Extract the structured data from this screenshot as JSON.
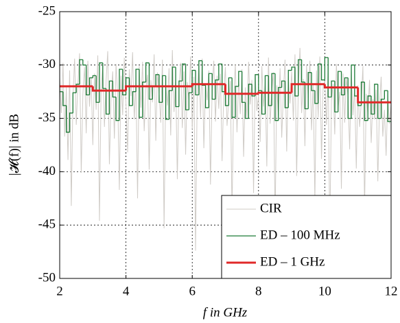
{
  "chart_data": {
    "type": "line",
    "xlabel": "f in GHz",
    "ylabel": "|𝓗(f)| in dB",
    "xlim": [
      2,
      12
    ],
    "ylim": [
      -50,
      -25
    ],
    "xticks": [
      2,
      4,
      6,
      8,
      10,
      12
    ],
    "yticks": [
      -50,
      -45,
      -40,
      -35,
      -30,
      -25
    ],
    "grid": true,
    "legend": "lower right",
    "series": [
      {
        "name": "CIR",
        "color": "#cfcbc6",
        "drawstyle": "default",
        "x": [
          2,
          2.05,
          2.1,
          2.15,
          2.2,
          2.25,
          2.3,
          2.35,
          2.4,
          2.45,
          2.5,
          2.55,
          2.6,
          2.65,
          2.7,
          2.75,
          2.8,
          2.85,
          2.9,
          2.95,
          3,
          3.05,
          3.1,
          3.15,
          3.2,
          3.25,
          3.3,
          3.35,
          3.4,
          3.45,
          3.5,
          3.55,
          3.6,
          3.65,
          3.7,
          3.75,
          3.8,
          3.85,
          3.9,
          3.95,
          4,
          4.05,
          4.1,
          4.15,
          4.2,
          4.25,
          4.3,
          4.35,
          4.4,
          4.45,
          4.5,
          4.55,
          4.6,
          4.65,
          4.7,
          4.75,
          4.8,
          4.85,
          4.9,
          4.95,
          5,
          5.05,
          5.1,
          5.15,
          5.2,
          5.25,
          5.3,
          5.35,
          5.4,
          5.45,
          5.5,
          5.55,
          5.6,
          5.65,
          5.7,
          5.75,
          5.8,
          5.85,
          5.9,
          5.95,
          6,
          6.05,
          6.1,
          6.15,
          6.2,
          6.25,
          6.3,
          6.35,
          6.4,
          6.45,
          6.5,
          6.55,
          6.6,
          6.65,
          6.7,
          6.75,
          6.8,
          6.85,
          6.9,
          6.95,
          7,
          7.05,
          7.1,
          7.15,
          7.2,
          7.25,
          7.3,
          7.35,
          7.4,
          7.45,
          7.5,
          7.55,
          7.6,
          7.65,
          7.7,
          7.75,
          7.8,
          7.85,
          7.9,
          7.95,
          8,
          8.05,
          8.1,
          8.15,
          8.2,
          8.25,
          8.3,
          8.35,
          8.4,
          8.45,
          8.5,
          8.55,
          8.6,
          8.65,
          8.7,
          8.75,
          8.8,
          8.85,
          8.9,
          8.95,
          9,
          9.05,
          9.1,
          9.15,
          9.2,
          9.25,
          9.3,
          9.35,
          9.4,
          9.45,
          9.5,
          9.55,
          9.6,
          9.65,
          9.7,
          9.75,
          9.8,
          9.85,
          9.9,
          9.95,
          10,
          10.05,
          10.1,
          10.15,
          10.2,
          10.25,
          10.3,
          10.35,
          10.4,
          10.45,
          10.5,
          10.55,
          10.6,
          10.65,
          10.7,
          10.75,
          10.8,
          10.85,
          10.9,
          10.95,
          11,
          11.05,
          11.1,
          11.15,
          11.2,
          11.25,
          11.3,
          11.35,
          11.4,
          11.45,
          11.5,
          11.55,
          11.6,
          11.65,
          11.7,
          11.75,
          11.8,
          11.85,
          11.9,
          11.95,
          12
        ],
        "values": [
          -31.2,
          -34.5,
          -29.8,
          -36.7,
          -32.1,
          -38.9,
          -30.5,
          -43.2,
          -33.0,
          -29.4,
          -35.6,
          -31.8,
          -28.9,
          -40.1,
          -32.7,
          -30.2,
          -36.4,
          -29.6,
          -33.9,
          -31.1,
          -37.5,
          -30.8,
          -34.2,
          -29.1,
          -44.6,
          -32.4,
          -30.0,
          -35.8,
          -31.5,
          -28.7,
          -39.3,
          -33.1,
          -30.6,
          -36.9,
          -29.9,
          -32.8,
          -41.7,
          -31.0,
          -34.7,
          -29.3,
          -33.6,
          -38.2,
          -30.4,
          -32.9,
          -28.8,
          -35.1,
          -31.7,
          -42.5,
          -30.1,
          -34.0,
          -29.7,
          -36.2,
          -32.3,
          -30.9,
          -39.8,
          -31.4,
          -33.5,
          -29.0,
          -37.1,
          -30.7,
          -32.6,
          -35.4,
          -29.5,
          -45.3,
          -31.9,
          -33.8,
          -30.3,
          -36.6,
          -28.6,
          -34.4,
          -31.3,
          -40.7,
          -32.0,
          -29.8,
          -35.9,
          -30.6,
          -38.4,
          -31.6,
          -33.2,
          -29.2,
          -36.0,
          -31.1,
          -47.4,
          -32.5,
          -30.0,
          -34.9,
          -29.4,
          -37.8,
          -31.8,
          -33.3,
          -30.5,
          -41.2,
          -32.2,
          -29.6,
          -35.3,
          -31.0,
          -34.1,
          -30.8,
          -39.0,
          -32.7,
          -30.2,
          -35.7,
          -33.4,
          -31.5,
          -43.9,
          -32.9,
          -29.9,
          -36.3,
          -31.2,
          -34.6,
          -30.4,
          -38.6,
          -32.1,
          -35.0,
          -29.7,
          -33.7,
          -31.4,
          -42.0,
          -30.9,
          -34.3,
          -32.8,
          -37.2,
          -30.1,
          -33.9,
          -31.6,
          -39.5,
          -29.3,
          -35.5,
          -32.4,
          -30.7,
          -44.8,
          -31.9,
          -34.8,
          -30.3,
          -36.8,
          -32.6,
          -29.5,
          -38.1,
          -31.0,
          -33.6,
          -30.6,
          -35.2,
          -29.0,
          -40.4,
          -32.3,
          -28.4,
          -34.5,
          -31.3,
          -37.6,
          -30.0,
          -33.1,
          -29.6,
          -36.1,
          -31.7,
          -42.8,
          -30.5,
          -34.9,
          -29.2,
          -38.8,
          -32.0,
          -31.5,
          -35.6,
          -30.2,
          -46.1,
          -33.3,
          -31.8,
          -36.5,
          -29.9,
          -34.1,
          -32.5,
          -41.6,
          -30.8,
          -35.4,
          -31.2,
          -33.0,
          -37.9,
          -30.4,
          -34.7,
          -32.2,
          -39.7,
          -31.9,
          -35.8,
          -33.5,
          -30.1,
          -43.5,
          -32.7,
          -34.6,
          -31.4,
          -37.3,
          -33.2,
          -35.1,
          -32.3,
          -40.9,
          -33.9,
          -31.1,
          -36.7,
          -34.2,
          -38.5,
          -32.8,
          -35.5,
          -33.7
        ]
      },
      {
        "name": "ED – 100 MHz",
        "color": "#1b7a35",
        "drawstyle": "steps-post",
        "x": [
          2,
          2.1,
          2.2,
          2.3,
          2.4,
          2.5,
          2.6,
          2.7,
          2.8,
          2.9,
          3,
          3.1,
          3.2,
          3.3,
          3.4,
          3.5,
          3.6,
          3.7,
          3.8,
          3.9,
          4,
          4.1,
          4.2,
          4.3,
          4.4,
          4.5,
          4.6,
          4.7,
          4.8,
          4.9,
          5,
          5.1,
          5.2,
          5.3,
          5.4,
          5.5,
          5.6,
          5.7,
          5.8,
          5.9,
          6,
          6.1,
          6.2,
          6.3,
          6.4,
          6.5,
          6.6,
          6.7,
          6.8,
          6.9,
          7,
          7.1,
          7.2,
          7.3,
          7.4,
          7.5,
          7.6,
          7.7,
          7.8,
          7.9,
          8,
          8.1,
          8.2,
          8.3,
          8.4,
          8.5,
          8.6,
          8.7,
          8.8,
          8.9,
          9,
          9.1,
          9.2,
          9.3,
          9.4,
          9.5,
          9.6,
          9.7,
          9.8,
          9.9,
          10,
          10.1,
          10.2,
          10.3,
          10.4,
          10.5,
          10.6,
          10.7,
          10.8,
          10.9,
          11,
          11.1,
          11.2,
          11.3,
          11.4,
          11.5,
          11.6,
          11.7,
          11.8,
          11.9
        ],
        "values": [
          -32.5,
          -33.8,
          -36.3,
          -34.5,
          -32.6,
          -31.8,
          -29.5,
          -30.0,
          -32.8,
          -31.2,
          -31.0,
          -33.5,
          -29.8,
          -32.2,
          -34.6,
          -31.5,
          -33.0,
          -35.2,
          -30.4,
          -32.8,
          -31.2,
          -33.8,
          -32.5,
          -30.4,
          -34.9,
          -31.6,
          -29.8,
          -33.2,
          -32.0,
          -30.9,
          -33.5,
          -31.0,
          -35.1,
          -32.4,
          -30.2,
          -33.9,
          -31.5,
          -29.9,
          -34.2,
          -32.6,
          -30.5,
          -32.8,
          -29.6,
          -31.9,
          -34.0,
          -30.8,
          -33.2,
          -31.4,
          -29.9,
          -32.5,
          -33.8,
          -31.2,
          -34.9,
          -32.0,
          -30.6,
          -33.5,
          -35.0,
          -31.8,
          -32.9,
          -30.9,
          -32.4,
          -34.6,
          -31.0,
          -33.8,
          -30.8,
          -35.2,
          -32.1,
          -31.5,
          -34.0,
          -30.5,
          -30.2,
          -32.9,
          -29.5,
          -31.6,
          -34.1,
          -30.7,
          -32.4,
          -33.6,
          -29.9,
          -31.4,
          -29.3,
          -33.0,
          -31.5,
          -34.4,
          -30.6,
          -32.8,
          -31.2,
          -35.0,
          -30.0,
          -32.9,
          -33.8,
          -31.6,
          -35.2,
          -32.9,
          -34.6,
          -31.8,
          -35.0,
          -33.2,
          -32.4,
          -35.3
        ]
      },
      {
        "name": "ED – 1 GHz",
        "color": "#e02828",
        "drawstyle": "steps-post",
        "x": [
          2,
          3,
          4,
          5,
          6,
          7,
          8,
          9,
          10,
          11
        ],
        "values": [
          -32.0,
          -32.4,
          -32.0,
          -32.0,
          -31.8,
          -32.7,
          -32.6,
          -31.8,
          -32.1,
          -33.5
        ]
      }
    ]
  }
}
